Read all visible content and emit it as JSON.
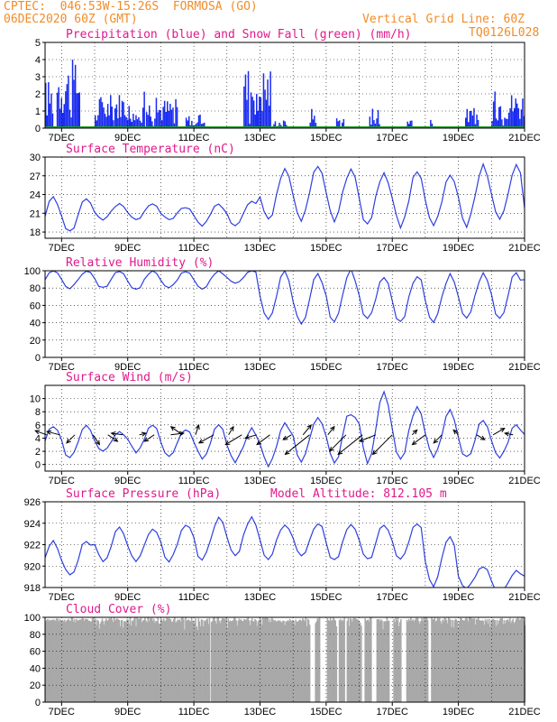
{
  "header": {
    "line1_left": "CPTEC:  046:53W-15:26S  FORMOSA (GO)",
    "line2_left": "06DEC2020 60Z (GMT)",
    "line2_right": "Vertical Grid Line: 60Z",
    "line3_right": "TQ0126L028"
  },
  "colors": {
    "header": "#f28c28",
    "panel_title": "#e0198c",
    "line": "#2e3fe0",
    "precip": "#1a2cf0",
    "snow": "#1aa01a",
    "cloud": "#a9a9a9",
    "arrow": "#000000"
  },
  "x_axis": {
    "start": 6.5,
    "end": 21,
    "gridlines": [
      7,
      8,
      9,
      10,
      11,
      12,
      13,
      14,
      15,
      16,
      17,
      18,
      19,
      20,
      21
    ],
    "tick_labels": [
      "7DEC",
      "9DEC",
      "11DEC",
      "13DEC",
      "15DEC",
      "17DEC",
      "19DEC",
      "21DEC"
    ],
    "tick_days": [
      7,
      9,
      11,
      13,
      15,
      17,
      19,
      21
    ]
  },
  "chart_data": [
    {
      "id": "precip",
      "type": "bar",
      "title": "Precipitation (blue) and Snow Fall (green) (mm/h)",
      "ylim": [
        0,
        5
      ],
      "yticks": [
        "0",
        "1",
        "2",
        "3",
        "4",
        "5"
      ],
      "ytick_values": [
        0,
        1,
        2,
        3,
        4,
        5
      ],
      "bursts": [
        [
          6.5,
          6.75,
          2.9
        ],
        [
          6.85,
          7.55,
          4.0
        ],
        [
          8.0,
          8.55,
          2.0
        ],
        [
          8.6,
          9.5,
          2.2
        ],
        [
          9.55,
          10.5,
          1.8
        ],
        [
          10.75,
          11.3,
          0.8
        ],
        [
          12.5,
          13.3,
          3.8
        ],
        [
          13.4,
          13.8,
          0.5
        ],
        [
          14.5,
          14.7,
          1.2
        ],
        [
          15.3,
          15.55,
          0.7
        ],
        [
          16.3,
          16.6,
          1.3
        ],
        [
          17.4,
          17.6,
          0.7
        ],
        [
          18.1,
          18.3,
          0.5
        ],
        [
          19.2,
          19.6,
          1.2
        ],
        [
          20.0,
          21.0,
          2.2
        ]
      ],
      "snow_series": {
        "name": "Snow Fall",
        "value": 0
      }
    },
    {
      "id": "temp",
      "type": "line",
      "title": "Surface Temperature (nC)",
      "ylim": [
        17,
        30
      ],
      "yticks": [
        "18",
        "21",
        "24",
        "27",
        "30"
      ],
      "ytick_values": [
        18,
        21,
        24,
        27,
        30
      ],
      "daily": {
        "min": [
          18,
          20,
          20,
          20,
          19,
          19,
          20,
          20,
          20,
          19,
          19,
          19,
          19,
          20,
          20
        ],
        "max": [
          23.5,
          22.5,
          22.5,
          22,
          22.5,
          23,
          28,
          28.5,
          28,
          27.5,
          28,
          27,
          28.5,
          28.5,
          24
        ]
      }
    },
    {
      "id": "rh",
      "type": "line",
      "title": "Relative Humidity (%)",
      "ylim": [
        0,
        100
      ],
      "yticks": [
        "0",
        "20",
        "40",
        "60",
        "80",
        "100"
      ],
      "ytick_values": [
        0,
        20,
        40,
        60,
        80,
        100
      ],
      "daily": {
        "min": [
          80,
          80,
          78,
          80,
          78,
          85,
          45,
          40,
          40,
          45,
          40,
          40,
          45,
          45,
          80
        ],
        "max": [
          100,
          100,
          100,
          100,
          100,
          100,
          98,
          95,
          100,
          95,
          95,
          95,
          95,
          100,
          100
        ]
      }
    },
    {
      "id": "wind",
      "type": "line",
      "title": "Surface Wind (m/s)",
      "ylim": [
        -1,
        12
      ],
      "yticks": [
        "0",
        "2",
        "4",
        "6",
        "8",
        "10"
      ],
      "ytick_values": [
        0,
        2,
        4,
        6,
        8,
        10
      ],
      "daily": {
        "min": [
          1,
          2,
          2,
          1,
          1,
          0.5,
          0,
          0.5,
          0.5,
          0.5,
          1,
          1,
          1,
          1,
          1
        ],
        "max": [
          6,
          5,
          6,
          5.5,
          6,
          5.5,
          6,
          7.5,
          8,
          11,
          9,
          8,
          7,
          6,
          8
        ]
      },
      "vectors": [
        [
          6.55,
          -0.7,
          0.25
        ],
        [
          6.95,
          -0.8,
          0.2
        ],
        [
          7.4,
          -0.5,
          -0.5
        ],
        [
          7.95,
          0.4,
          -0.6
        ],
        [
          8.4,
          0.6,
          -0.4
        ],
        [
          8.85,
          -0.7,
          0.1
        ],
        [
          9.35,
          0.4,
          0.1
        ],
        [
          9.8,
          -0.6,
          -0.4
        ],
        [
          10.3,
          0.8,
          0.1
        ],
        [
          10.65,
          -0.7,
          0.5
        ],
        [
          11.05,
          0.2,
          0.6
        ],
        [
          11.6,
          -0.9,
          -0.5
        ],
        [
          12.05,
          0.3,
          0.5
        ],
        [
          12.45,
          -1.0,
          -0.6
        ],
        [
          12.9,
          -0.7,
          -0.2
        ],
        [
          13.3,
          -0.8,
          -0.6
        ],
        [
          13.95,
          -0.5,
          -0.3
        ],
        [
          14.3,
          0.5,
          0.6
        ],
        [
          14.5,
          -1.5,
          -1.2
        ],
        [
          15.05,
          0.4,
          0.5
        ],
        [
          15.6,
          -1.0,
          -1.0
        ],
        [
          16.1,
          -1.5,
          -1.2
        ],
        [
          16.5,
          -1.0,
          -0.4
        ],
        [
          17.0,
          -1.2,
          -1.2
        ],
        [
          17.6,
          0.3,
          0.3
        ],
        [
          18.0,
          -0.8,
          -0.6
        ],
        [
          18.5,
          -0.5,
          -0.5
        ],
        [
          19.0,
          -0.3,
          0.3
        ],
        [
          19.55,
          0.5,
          -0.3
        ],
        [
          20.05,
          0.7,
          0.4
        ],
        [
          20.65,
          -0.5,
          0.1
        ]
      ]
    },
    {
      "id": "press",
      "type": "line",
      "title": "Surface Pressure (hPa)",
      "annotation": "Model Altitude: 812.105 m",
      "ylim": [
        918,
        926
      ],
      "yticks": [
        "918",
        "920",
        "922",
        "924",
        "926"
      ],
      "ytick_values": [
        918,
        920,
        922,
        924,
        926
      ],
      "daily": {
        "min": [
          919,
          920.5,
          920.5,
          920.5,
          920.5,
          921,
          920.5,
          921,
          920.5,
          920.5,
          920.5,
          918,
          918,
          917.5,
          918
        ],
        "max": [
          922.3,
          923.5,
          923.5,
          924,
          924.5,
          924.5,
          924,
          924,
          924,
          924,
          924,
          923,
          920,
          919.5,
          920
        ]
      }
    },
    {
      "id": "cloud",
      "type": "area",
      "title": "Cloud Cover (%)",
      "ylim": [
        0,
        100
      ],
      "yticks": [
        "0",
        "20",
        "40",
        "60",
        "80",
        "100"
      ],
      "ytick_values": [
        0,
        20,
        40,
        60,
        80,
        100
      ],
      "gaps": [
        [
          11.45,
          11.5
        ],
        [
          14.5,
          14.65
        ],
        [
          14.8,
          15.0
        ],
        [
          15.3,
          15.35
        ],
        [
          15.55,
          15.6
        ],
        [
          16.05,
          16.15
        ],
        [
          16.35,
          16.5
        ],
        [
          16.9,
          17.0
        ],
        [
          17.25,
          17.4
        ],
        [
          18.05,
          18.15
        ]
      ]
    }
  ]
}
